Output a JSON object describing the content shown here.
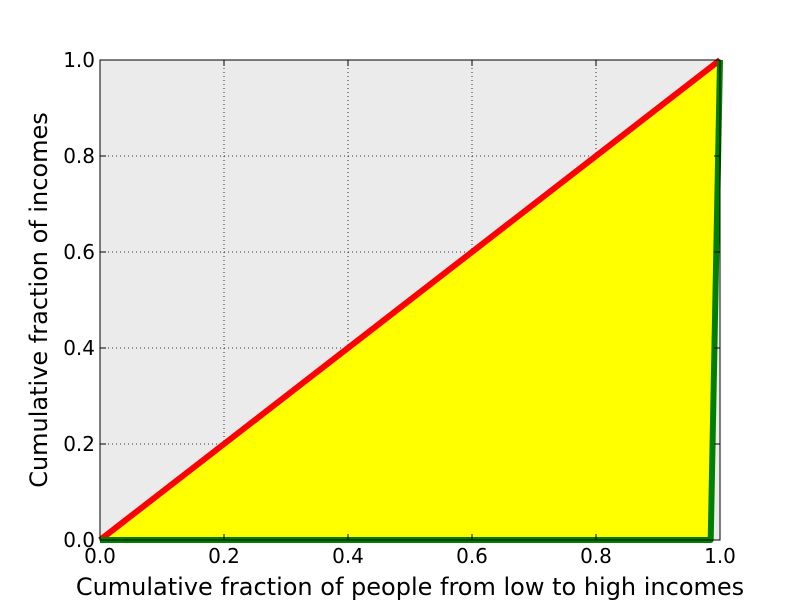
{
  "chart_data": {
    "type": "line",
    "title": "",
    "xlabel": "Cumulative fraction of people from low to high incomes",
    "ylabel": "Cumulative fraction of incomes",
    "xlim": [
      0.0,
      1.0
    ],
    "ylim": [
      0.0,
      1.0
    ],
    "xticks": [
      "0.0",
      "0.2",
      "0.4",
      "0.6",
      "0.8",
      "1.0"
    ],
    "yticks": [
      "0.0",
      "0.2",
      "0.4",
      "0.6",
      "0.8",
      "1.0"
    ],
    "grid": true,
    "legend": "none",
    "series": [
      {
        "kind": "line",
        "x": [
          0.0,
          1.0
        ],
        "y": [
          0.0,
          1.0
        ],
        "color": "#ff0000"
      },
      {
        "kind": "line",
        "x": [
          0.0,
          0.985,
          1.0
        ],
        "y": [
          0.0,
          0.0,
          1.0
        ],
        "color": "#008000"
      }
    ],
    "fill_between": {
      "upper": "series_0",
      "lower": "series_1",
      "color": "#ffff00"
    },
    "background_color": "#ebebeb"
  }
}
